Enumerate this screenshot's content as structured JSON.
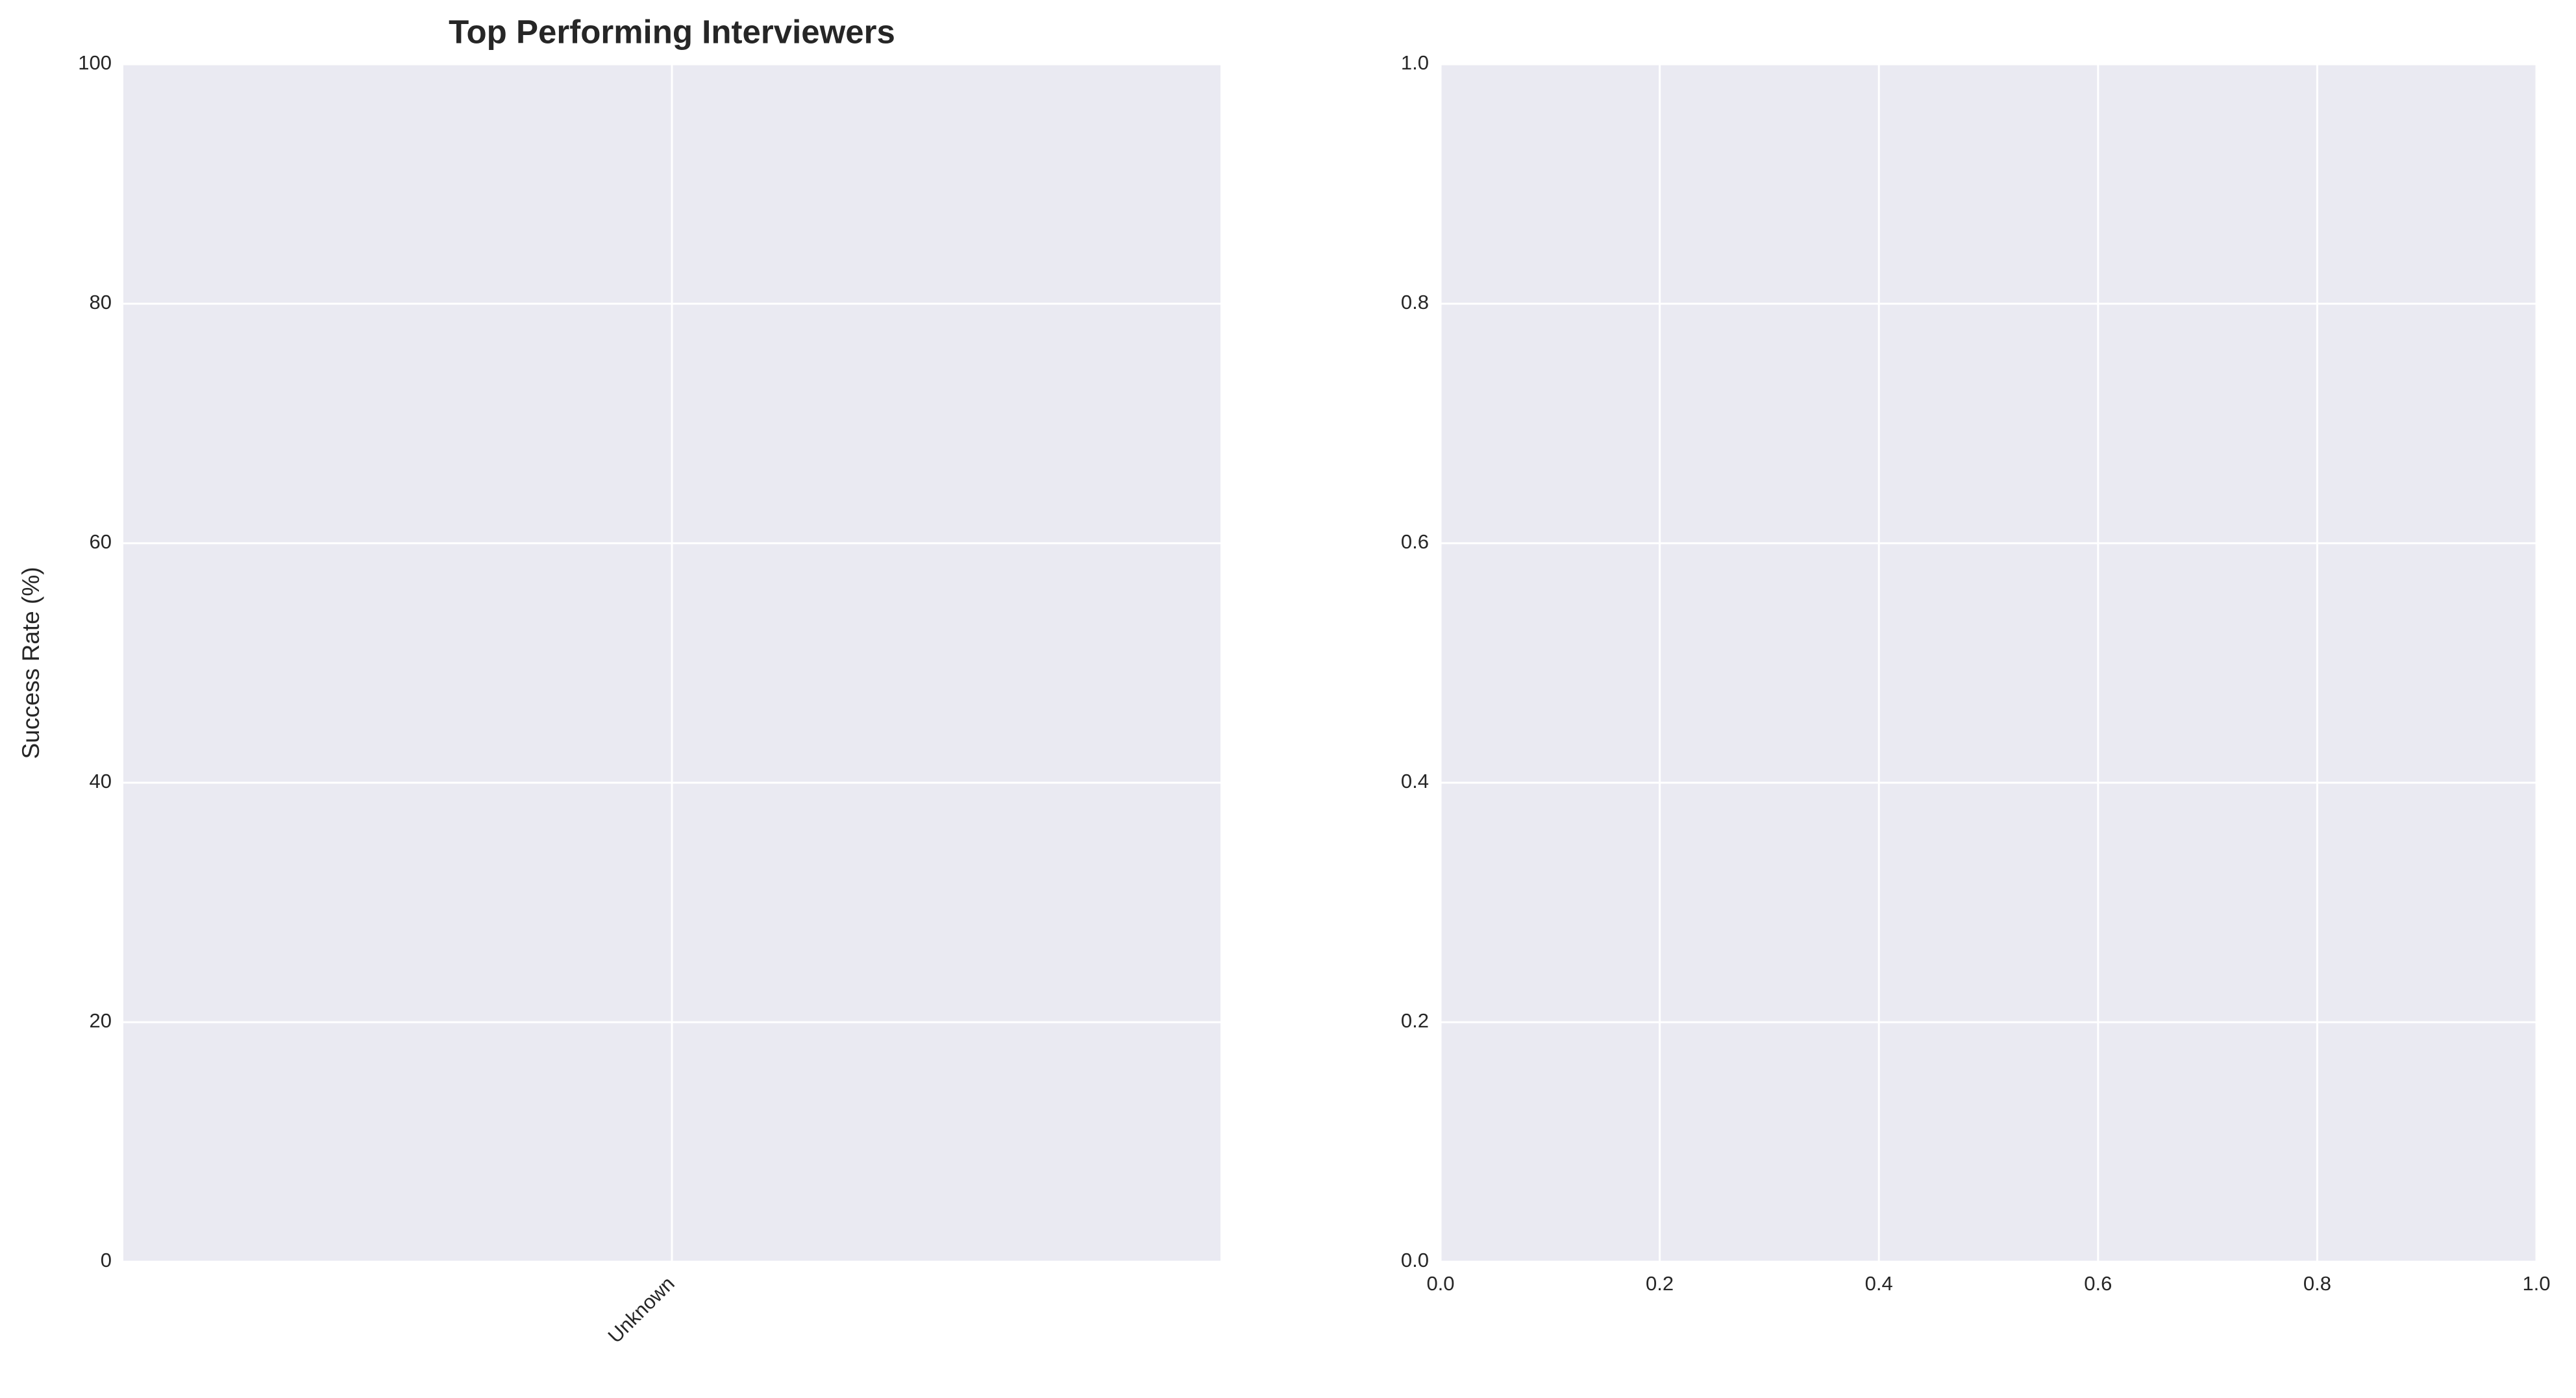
{
  "chart_data": [
    {
      "type": "bar",
      "title": "Top Performing Interviewers",
      "ylabel": "Success Rate (%)",
      "categories": [
        "Unknown"
      ],
      "ylim": [
        0,
        100
      ],
      "yticks": [
        0,
        20,
        40,
        60,
        80,
        100
      ],
      "grid": true
    },
    {
      "type": "scatter",
      "xlim": [
        0,
        1
      ],
      "xticks": [
        {
          "value": 0,
          "label": "0.0"
        },
        0.2,
        0.4,
        0.6,
        0.8,
        {
          "value": 1,
          "label": "1.0"
        }
      ],
      "ylim": [
        0,
        1
      ],
      "yticks": [
        {
          "value": 0,
          "label": "0.0"
        },
        0.2,
        0.4,
        0.6,
        0.8,
        {
          "value": 1,
          "label": "1.0"
        }
      ],
      "grid": true
    }
  ]
}
